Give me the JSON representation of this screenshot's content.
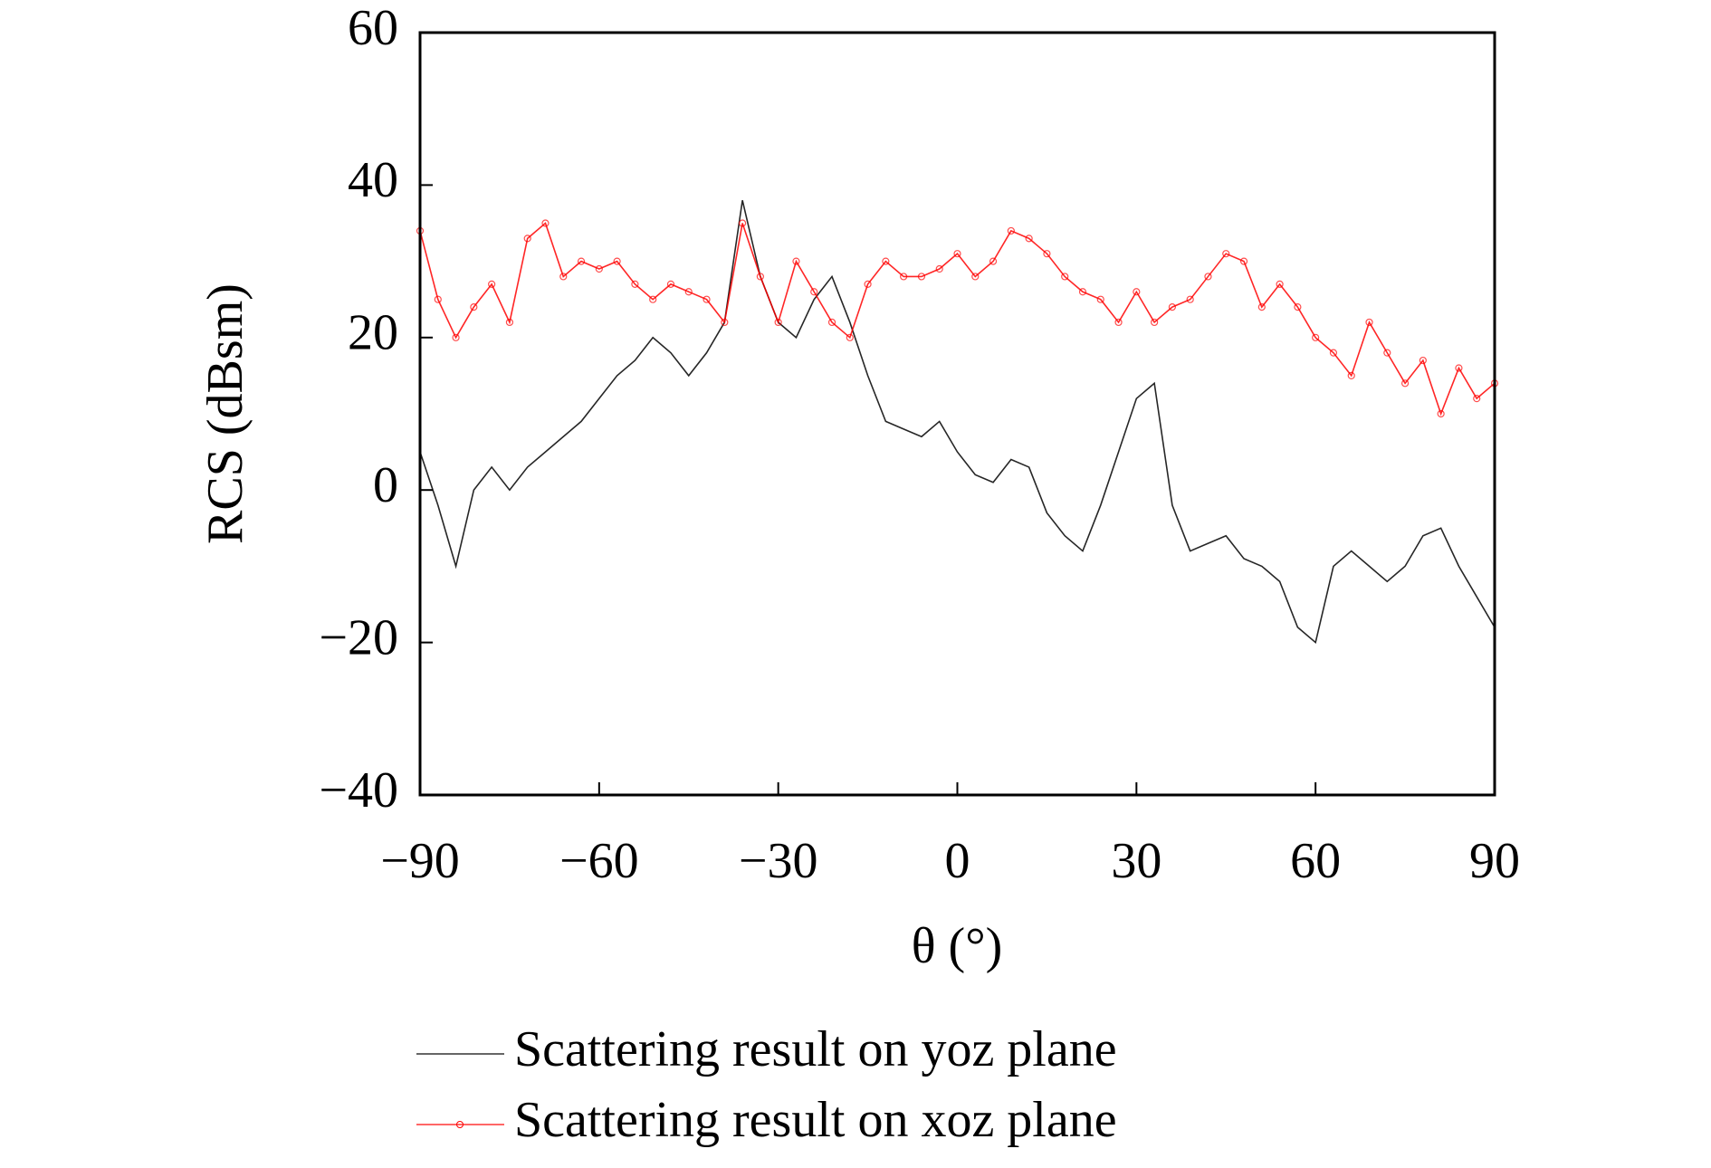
{
  "chart_data": {
    "type": "line",
    "xlabel": "θ (°)",
    "ylabel": "RCS (dBsm)",
    "x": [
      -90,
      -87,
      -84,
      -81,
      -78,
      -75,
      -72,
      -69,
      -66,
      -63,
      -60,
      -57,
      -54,
      -51,
      -48,
      -45,
      -42,
      -39,
      -36,
      -33,
      -30,
      -27,
      -24,
      -21,
      -18,
      -15,
      -12,
      -9,
      -6,
      -3,
      0,
      3,
      6,
      9,
      12,
      15,
      18,
      21,
      24,
      27,
      30,
      33,
      36,
      39,
      42,
      45,
      48,
      51,
      54,
      57,
      60,
      63,
      66,
      69,
      72,
      75,
      78,
      81,
      84,
      87,
      90
    ],
    "series": [
      {
        "name": "Scattering result on yoz plane",
        "color": "#000000",
        "marker": false,
        "values": [
          5,
          -2,
          -10,
          0,
          3,
          0,
          3,
          5,
          7,
          9,
          12,
          15,
          17,
          20,
          18,
          15,
          18,
          22,
          38,
          28,
          22,
          20,
          25,
          28,
          22,
          15,
          9,
          8,
          7,
          9,
          5,
          2,
          1,
          4,
          3,
          -3,
          -6,
          -8,
          -2,
          5,
          12,
          14,
          -2,
          -8,
          -7,
          -6,
          -9,
          -10,
          -12,
          -18,
          -20,
          -10,
          -8,
          -10,
          -12,
          -10,
          -6,
          -5,
          -10,
          -14,
          -18
        ]
      },
      {
        "name": "Scattering result on xoz plane",
        "color": "#ff0000",
        "marker": true,
        "values": [
          34,
          25,
          20,
          24,
          27,
          22,
          33,
          35,
          28,
          30,
          29,
          30,
          27,
          25,
          27,
          26,
          25,
          22,
          35,
          28,
          22,
          30,
          26,
          22,
          20,
          27,
          30,
          28,
          28,
          29,
          31,
          28,
          30,
          34,
          33,
          31,
          28,
          26,
          25,
          22,
          26,
          22,
          24,
          25,
          28,
          31,
          30,
          24,
          27,
          24,
          20,
          18,
          15,
          22,
          18,
          14,
          17,
          10,
          16,
          12,
          14
        ]
      }
    ],
    "xlim": [
      -90,
      90
    ],
    "xticks": [
      {
        "value": -90,
        "label": "−90"
      },
      {
        "value": -60,
        "label": "−60"
      },
      {
        "value": -30,
        "label": "−30"
      },
      0,
      30,
      60,
      90
    ],
    "ylim": [
      -40,
      60
    ],
    "yticks": [
      {
        "value": -40,
        "label": "−40"
      },
      {
        "value": -20,
        "label": "−20"
      },
      0,
      20,
      40,
      60
    ],
    "grid": false
  }
}
